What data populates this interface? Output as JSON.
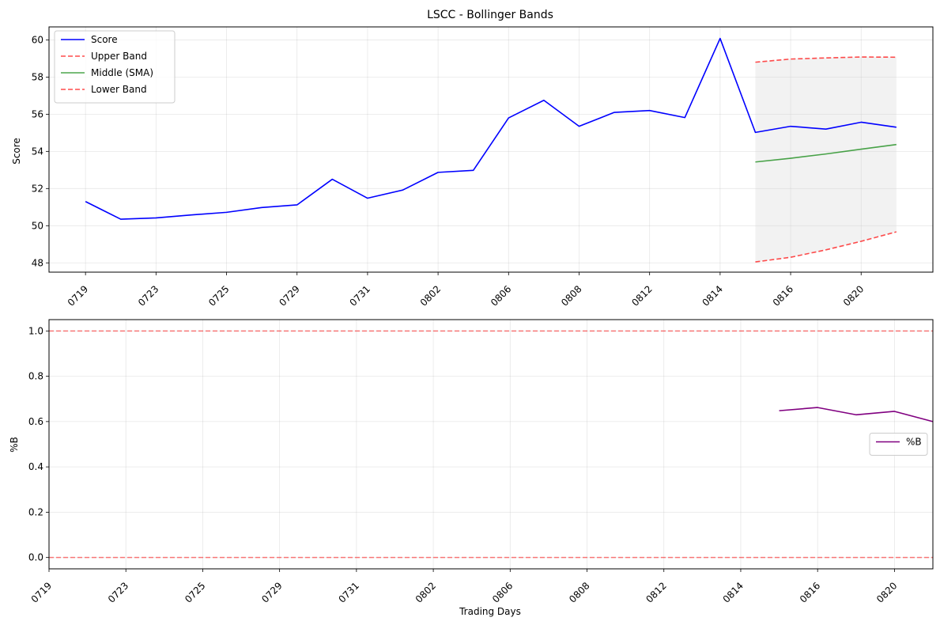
{
  "chart_data": [
    {
      "type": "line",
      "title": "LSCC - Bollinger Bands",
      "xlabel": "",
      "ylabel": "Score",
      "ylim": [
        47.5,
        60.7
      ],
      "yticks": [
        48,
        50,
        52,
        54,
        56,
        58,
        60
      ],
      "x": [
        "0719",
        "0722",
        "0723",
        "0724",
        "0725",
        "0726",
        "0729",
        "0730",
        "0731",
        "0801",
        "0802",
        "0805",
        "0806",
        "0807",
        "0808",
        "0809",
        "0812",
        "0813",
        "0814",
        "0815",
        "0816",
        "0819",
        "0820",
        "0821"
      ],
      "xtick_labels": [
        "0719",
        "0723",
        "0725",
        "0729",
        "0731",
        "0802",
        "0806",
        "0808",
        "0812",
        "0814",
        "0816",
        "0820"
      ],
      "series": [
        {
          "name": "Score",
          "color": "#0000ff",
          "dash": "solid",
          "values": [
            51.3,
            50.35,
            50.42,
            50.58,
            50.72,
            50.98,
            51.12,
            52.5,
            51.48,
            51.92,
            52.87,
            52.98,
            55.8,
            56.75,
            55.35,
            56.1,
            56.2,
            55.82,
            60.08,
            55.02,
            55.35,
            55.2,
            55.57,
            55.3
          ]
        },
        {
          "name": "Upper Band",
          "color": "#ff0000",
          "dash": "dashed",
          "values": [
            null,
            null,
            null,
            null,
            null,
            null,
            null,
            null,
            null,
            null,
            null,
            null,
            null,
            null,
            null,
            null,
            null,
            null,
            null,
            58.8,
            58.97,
            59.03,
            59.08,
            59.07
          ]
        },
        {
          "name": "Middle (SMA)",
          "color": "#008000",
          "dash": "solid",
          "values": [
            null,
            null,
            null,
            null,
            null,
            null,
            null,
            null,
            null,
            null,
            null,
            null,
            null,
            null,
            null,
            null,
            null,
            null,
            null,
            53.43,
            53.63,
            53.86,
            54.12,
            54.37
          ]
        },
        {
          "name": "Lower Band",
          "color": "#ff0000",
          "dash": "dashed",
          "values": [
            null,
            null,
            null,
            null,
            null,
            null,
            null,
            null,
            null,
            null,
            null,
            null,
            null,
            null,
            null,
            null,
            null,
            null,
            null,
            48.05,
            48.3,
            48.7,
            49.16,
            49.67
          ]
        }
      ],
      "band_fill": {
        "color": "#d3d3d3",
        "between": [
          "Upper Band",
          "Lower Band"
        ]
      },
      "grid": true,
      "legend": "top-left"
    },
    {
      "type": "line",
      "title": "",
      "xlabel": "Trading Days",
      "ylabel": "%B",
      "ylim": [
        -0.05,
        1.05
      ],
      "yticks": [
        0.0,
        0.2,
        0.4,
        0.6,
        0.8,
        1.0
      ],
      "ytick_labels": [
        "0.0",
        "0.2",
        "0.4",
        "0.6",
        "0.8",
        "1.0"
      ],
      "x": [
        "0719",
        "0722",
        "0723",
        "0724",
        "0725",
        "0726",
        "0729",
        "0730",
        "0731",
        "0801",
        "0802",
        "0805",
        "0806",
        "0807",
        "0808",
        "0809",
        "0812",
        "0813",
        "0814",
        "0815",
        "0816",
        "0819",
        "0820",
        "0821"
      ],
      "xtick_labels": [
        "0719",
        "0723",
        "0725",
        "0729",
        "0731",
        "0802",
        "0806",
        "0808",
        "0812",
        "0814",
        "0816",
        "0820"
      ],
      "series": [
        {
          "name": "%B",
          "color": "#800080",
          "dash": "solid",
          "values": [
            null,
            null,
            null,
            null,
            null,
            null,
            null,
            null,
            null,
            null,
            null,
            null,
            null,
            null,
            null,
            null,
            null,
            null,
            null,
            0.648,
            0.662,
            0.63,
            0.645,
            0.6
          ]
        }
      ],
      "reference_lines": [
        {
          "y": 1.0,
          "color": "#ff0000",
          "dash": "dashed"
        },
        {
          "y": 0.0,
          "color": "#ff0000",
          "dash": "dashed"
        }
      ],
      "grid": true,
      "legend": "right"
    }
  ]
}
